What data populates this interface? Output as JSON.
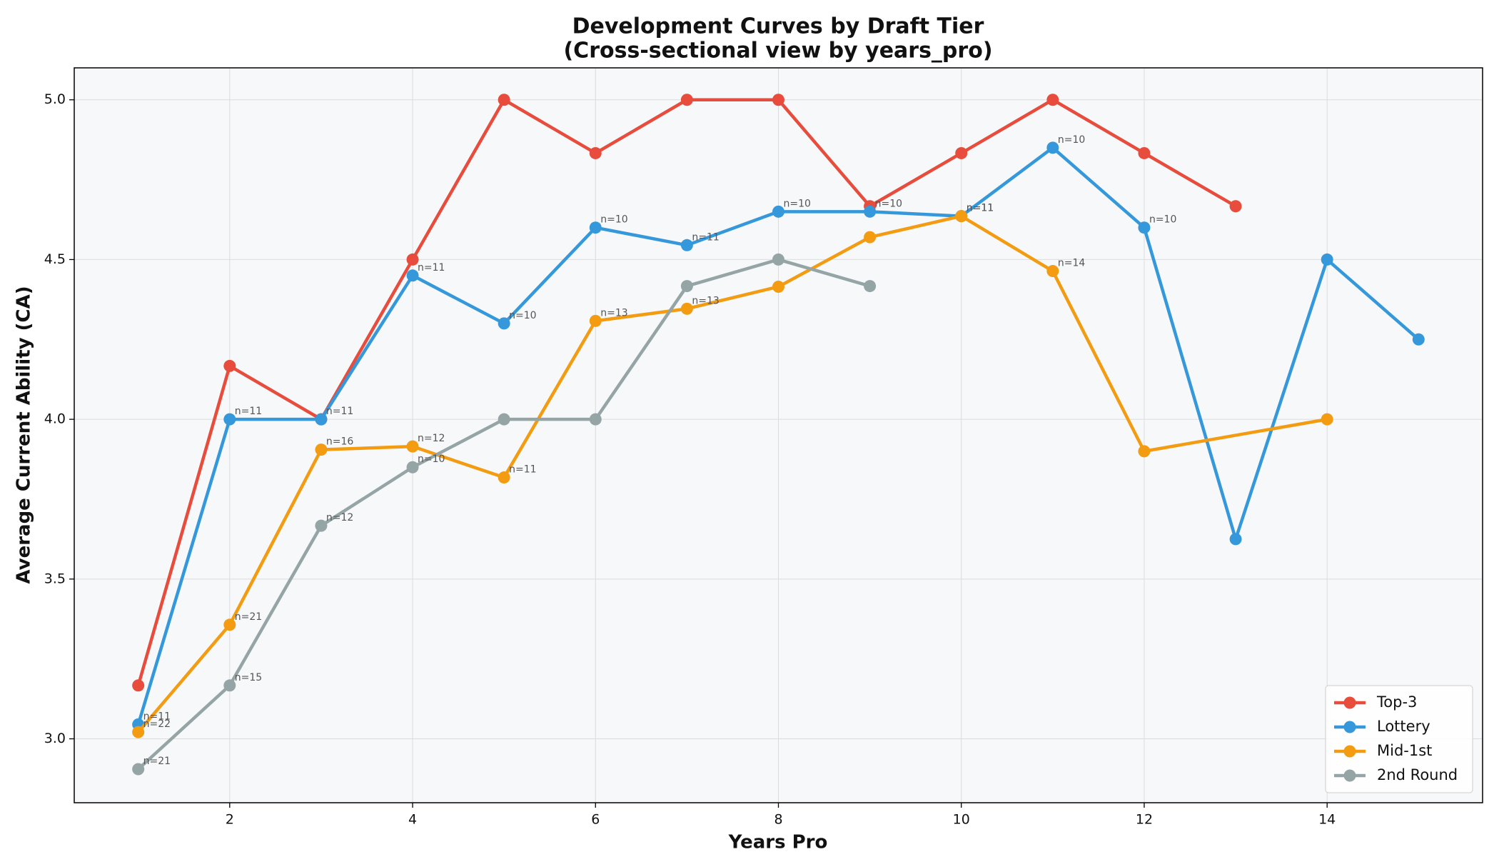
{
  "chart_data": {
    "type": "line",
    "title": "Development Curves by Draft Tier",
    "subtitle": "(Cross-sectional view by years_pro)",
    "x_label": "Years Pro",
    "y_label": "Average Current Ability (CA)",
    "xlim": [
      0.3,
      15.7
    ],
    "ylim": [
      2.8,
      5.1
    ],
    "xticks": [
      2,
      4,
      6,
      8,
      10,
      12,
      14
    ],
    "yticks": [
      {
        "value": 3,
        "label": "3.0"
      },
      {
        "value": 3.5,
        "label": "3.5"
      },
      {
        "value": 4,
        "label": "4.0"
      },
      {
        "value": 4.5,
        "label": "4.5"
      },
      {
        "value": 5,
        "label": "5.0"
      }
    ],
    "grid": true,
    "legend": "lower right",
    "series": [
      {
        "name": "Top-3",
        "color": "#e74c3c",
        "x": [
          1,
          2,
          3,
          4,
          5,
          6,
          7,
          8,
          9,
          10,
          11,
          12,
          13
        ],
        "values": [
          3.167,
          4.167,
          4.0,
          4.5,
          5.0,
          4.833,
          5.0,
          5.0,
          4.667,
          4.833,
          5.0,
          4.833,
          4.667
        ]
      },
      {
        "name": "Lottery",
        "color": "#3498db",
        "x": [
          1,
          2,
          3,
          4,
          5,
          6,
          7,
          8,
          9,
          10,
          11,
          12,
          13,
          14,
          15
        ],
        "values": [
          3.045,
          4.0,
          4.0,
          4.45,
          4.3,
          4.6,
          4.545,
          4.65,
          4.65,
          4.636,
          4.85,
          4.6,
          3.625,
          4.5,
          4.25
        ],
        "point_labels": [
          "n=11",
          "n=11",
          "n=11",
          "n=11",
          "n=10",
          "n=10",
          "n=11",
          "n=10",
          "n=10",
          "n=11",
          "n=10",
          "n=10",
          null,
          null,
          null
        ]
      },
      {
        "name": "Mid-1st",
        "color": "#f39c12",
        "x": [
          1,
          2,
          3,
          4,
          5,
          6,
          7,
          8,
          9,
          10,
          11,
          12,
          14
        ],
        "values": [
          3.021,
          3.357,
          3.905,
          3.915,
          3.818,
          4.308,
          4.346,
          4.415,
          4.57,
          4.636,
          4.464,
          3.9,
          4.0
        ],
        "point_labels": [
          "n=22",
          "n=21",
          "n=16",
          "n=12",
          "n=11",
          "n=13",
          "n=13",
          null,
          null,
          "n=11",
          "n=14",
          null,
          null
        ]
      },
      {
        "name": "2nd Round",
        "color": "#95a5a6",
        "x": [
          1,
          2,
          3,
          4,
          5,
          6,
          7,
          8,
          9
        ],
        "values": [
          2.905,
          3.167,
          3.667,
          3.85,
          4.0,
          4.0,
          4.417,
          4.5,
          4.417
        ],
        "point_labels": [
          "n=21",
          "n=15",
          "n=12",
          "n=10",
          null,
          null,
          null,
          null,
          null
        ]
      }
    ]
  }
}
